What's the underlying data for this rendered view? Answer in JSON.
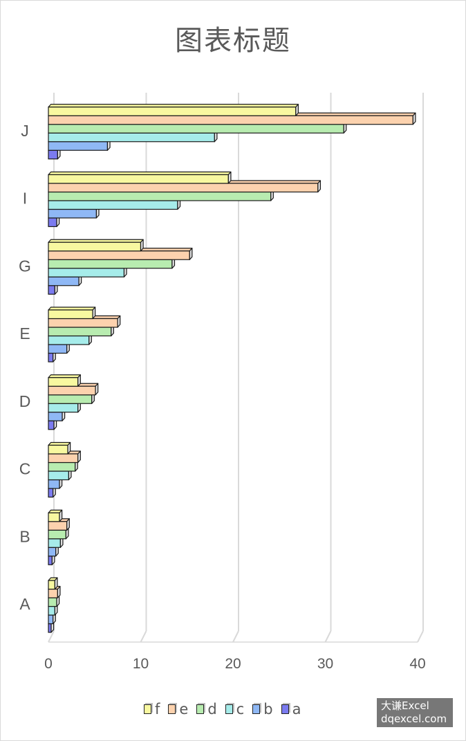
{
  "chart_data": {
    "type": "bar",
    "orientation": "horizontal",
    "style": "3d-clustered",
    "title": "图表标题",
    "categories": [
      "A",
      "B",
      "C",
      "D",
      "E",
      "G",
      "I",
      "J"
    ],
    "x_ticks": [
      "0",
      "10",
      "20",
      "30",
      "40"
    ],
    "xlim": [
      0,
      40
    ],
    "grid": true,
    "legend_position": "bottom",
    "series": [
      {
        "name": "a",
        "color": "#7b7bf0",
        "values": [
          0.3,
          0.4,
          0.5,
          0.6,
          0.5,
          0.7,
          0.9,
          1.0
        ]
      },
      {
        "name": "b",
        "color": "#8fb8f5",
        "values": [
          0.5,
          0.8,
          1.2,
          1.5,
          2.0,
          3.3,
          5.2,
          6.4
        ]
      },
      {
        "name": "c",
        "color": "#a6ecea",
        "values": [
          0.7,
          1.3,
          2.2,
          3.2,
          4.4,
          8.2,
          14.0,
          18.0
        ]
      },
      {
        "name": "d",
        "color": "#b8ecb0",
        "values": [
          0.9,
          1.9,
          2.9,
          4.7,
          6.8,
          13.4,
          24.1,
          32.0
        ]
      },
      {
        "name": "e",
        "color": "#fcd2ae",
        "values": [
          1.0,
          2.0,
          3.2,
          5.1,
          7.5,
          15.3,
          29.2,
          39.5
        ]
      },
      {
        "name": "f",
        "color": "#f8f8a0",
        "values": [
          0.7,
          1.2,
          2.1,
          3.2,
          4.8,
          10.0,
          19.5,
          26.8
        ]
      }
    ]
  },
  "watermark": {
    "line1": "大谦Excel",
    "line2": "dqexcel.com"
  }
}
